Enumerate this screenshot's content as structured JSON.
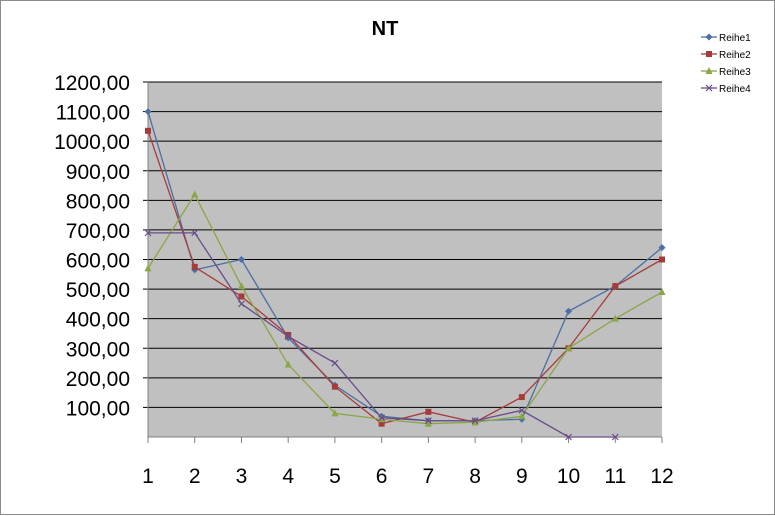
{
  "chart_data": {
    "type": "line",
    "title": "NT",
    "categories": [
      "1",
      "2",
      "3",
      "4",
      "5",
      "6",
      "7",
      "8",
      "9",
      "10",
      "11",
      "12"
    ],
    "y_tick_labels": [
      "100,00",
      "200,00",
      "300,00",
      "400,00",
      "500,00",
      "600,00",
      "700,00",
      "800,00",
      "900,00",
      "1000,00",
      "1100,00",
      "1200,00"
    ],
    "ylim": [
      0,
      1200
    ],
    "grid": true,
    "legend_position": "top-right",
    "plot_background": "#c0c0c0",
    "series": [
      {
        "name": "Reihe1",
        "color": "#4a6fa5",
        "marker": "diamond",
        "values": [
          1100,
          565,
          600,
          335,
          175,
          70,
          55,
          55,
          60,
          425,
          510,
          640
        ]
      },
      {
        "name": "Reihe2",
        "color": "#a63c3a",
        "marker": "square",
        "values": [
          1035,
          575,
          475,
          345,
          170,
          45,
          85,
          50,
          135,
          300,
          510,
          600
        ]
      },
      {
        "name": "Reihe3",
        "color": "#8aa645",
        "marker": "triangle",
        "values": [
          570,
          820,
          510,
          245,
          80,
          60,
          45,
          50,
          70,
          300,
          400,
          490
        ]
      },
      {
        "name": "Reihe4",
        "color": "#6b4c8a",
        "marker": "x",
        "values": [
          690,
          690,
          450,
          340,
          250,
          65,
          55,
          55,
          90,
          0,
          0,
          null
        ]
      }
    ]
  }
}
